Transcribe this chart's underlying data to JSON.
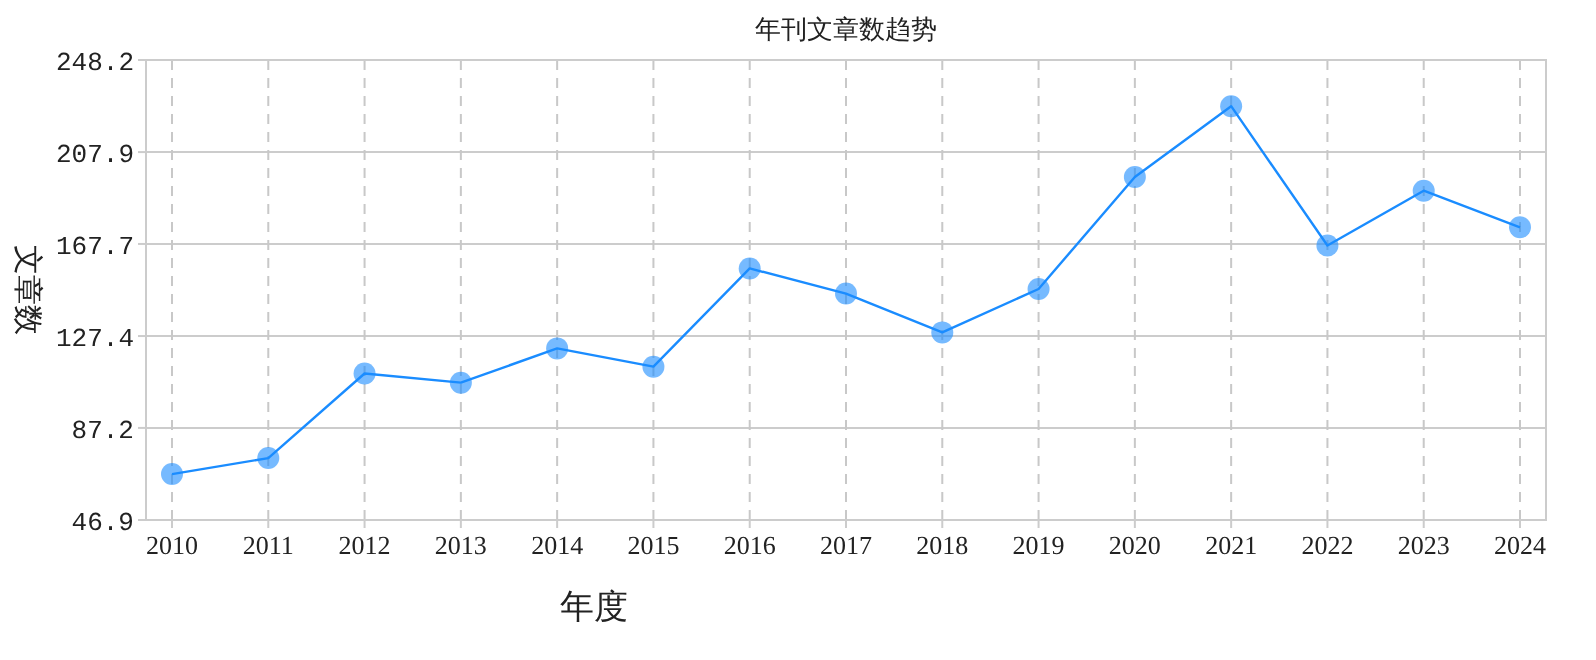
{
  "chart_data": {
    "type": "line",
    "title": "年刊文章数趋势",
    "xlabel": "年度",
    "ylabel": "文章数",
    "categories": [
      "2010",
      "2011",
      "2012",
      "2013",
      "2014",
      "2015",
      "2016",
      "2017",
      "2018",
      "2019",
      "2020",
      "2021",
      "2022",
      "2023",
      "2024"
    ],
    "series": [
      {
        "color": "#1a8cff",
        "values": [
          67,
          74,
          111,
          107,
          122,
          114,
          157,
          146,
          129,
          148,
          197,
          228,
          167,
          191,
          175
        ]
      }
    ],
    "ylim": [
      46.9,
      248.2
    ],
    "yticks": [
      46.9,
      87.2,
      127.4,
      167.7,
      207.9,
      248.2
    ],
    "grid": true,
    "marker": "circle",
    "line_style": "solid"
  }
}
